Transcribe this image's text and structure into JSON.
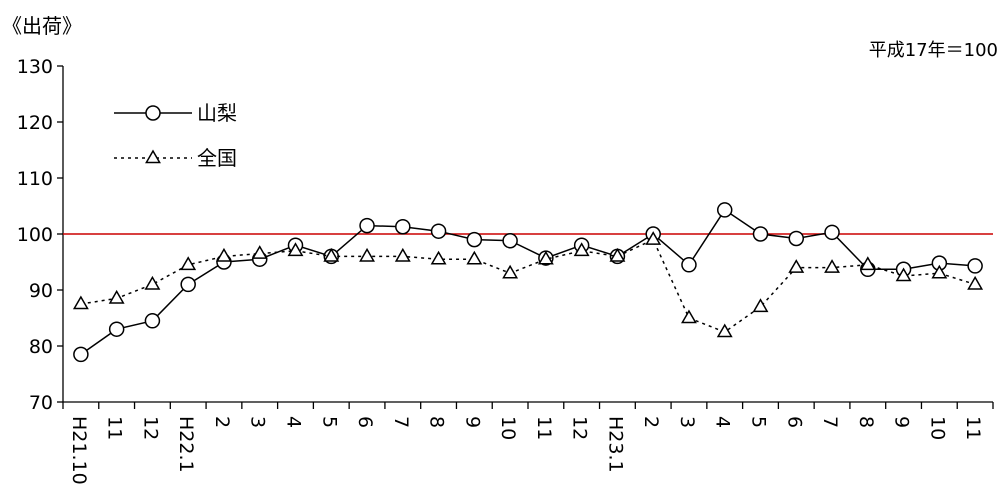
{
  "chart_data": {
    "type": "line",
    "title": "《出荷》",
    "unit_note": "平成17年＝100",
    "ylim": [
      70,
      130
    ],
    "yticks": [
      70,
      80,
      90,
      100,
      110,
      120,
      130
    ],
    "grid": false,
    "legend_position": "top-left",
    "reference_line": {
      "value": 100,
      "color": "#cc0000"
    },
    "categories": [
      "H21.10",
      "11",
      "12",
      "H22.1",
      "2",
      "3",
      "4",
      "5",
      "6",
      "7",
      "8",
      "9",
      "10",
      "11",
      "12",
      "H23.1",
      "2",
      "3",
      "4",
      "5",
      "6",
      "7",
      "8",
      "9",
      "10",
      "11"
    ],
    "series": [
      {
        "name": "山梨",
        "style": "solid",
        "marker": "circle",
        "color": "#000000",
        "values": [
          78.5,
          83,
          84.5,
          91,
          95,
          95.5,
          98,
          96,
          101.5,
          101.3,
          100.5,
          99,
          98.8,
          95.7,
          98,
          96,
          100,
          94.5,
          104.3,
          100,
          99.2,
          100.3,
          93.7,
          93.7,
          94.8,
          94.3
        ]
      },
      {
        "name": "全国",
        "style": "dotted",
        "marker": "triangle",
        "color": "#000000",
        "values": [
          87.5,
          88.5,
          91,
          94.5,
          96,
          96.5,
          97,
          96,
          96,
          96,
          95.5,
          95.5,
          93,
          95.5,
          97,
          96,
          99,
          85,
          82.5,
          87,
          94,
          94,
          94.5,
          92.5,
          93,
          91
        ]
      }
    ]
  }
}
